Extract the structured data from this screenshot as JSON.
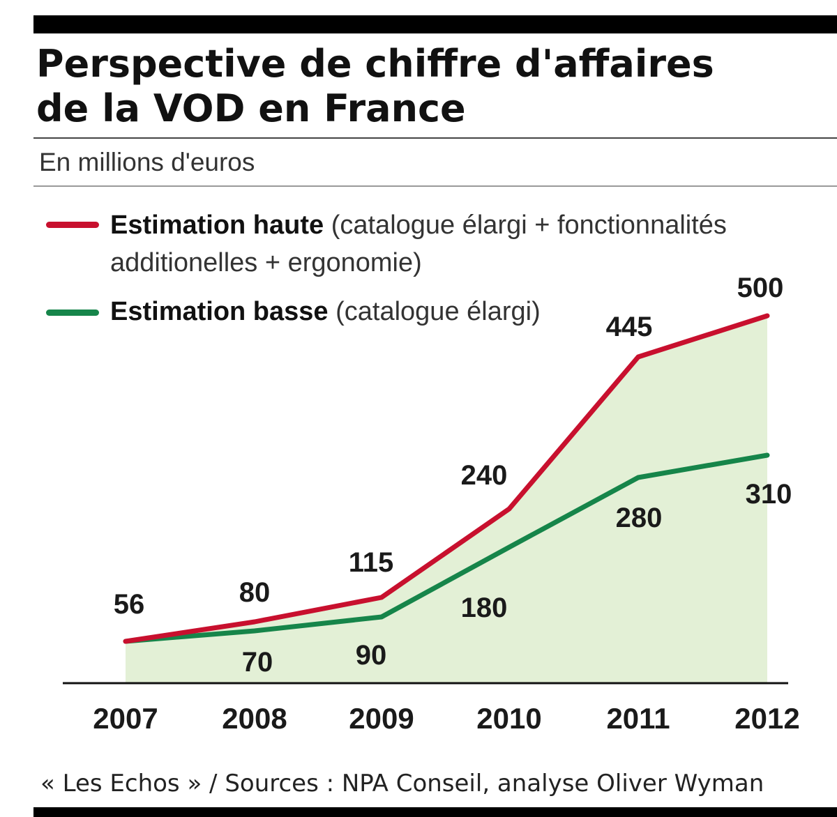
{
  "title_line1": "Perspective de chiffre d'affaires",
  "title_line2": "de la VOD en France",
  "subtitle": "En millions d'euros",
  "source": "« Les Echos » / Sources : NPA Conseil, analyse Oliver Wyman",
  "legend": [
    {
      "bold": "Estimation haute",
      "rest_line1": " (catalogue élargi + fonctionnalités",
      "rest_line2": "additionelles + ergonomie)",
      "color": "#c8102e"
    },
    {
      "bold": "Estimation basse",
      "rest_line1": " (catalogue élargi)",
      "rest_line2": "",
      "color": "#16854a"
    }
  ],
  "chart_data": {
    "type": "line",
    "categories": [
      "2007",
      "2008",
      "2009",
      "2010",
      "2011",
      "2012"
    ],
    "series": [
      {
        "name": "Estimation haute",
        "values": [
          56,
          80,
          115,
          240,
          445,
          500
        ],
        "color": "#c8102e"
      },
      {
        "name": "Estimation basse",
        "values": [
          56,
          70,
          90,
          180,
          280,
          310
        ],
        "color": "#16854a"
      }
    ],
    "fill_color": "#e3f0d6",
    "data_labels": {
      "haute": [
        "56",
        "80",
        "115",
        "240",
        "445",
        "500"
      ],
      "basse": [
        "70",
        "90",
        "180",
        "280",
        "310"
      ]
    },
    "ylim": [
      0,
      560
    ],
    "grid": false
  }
}
